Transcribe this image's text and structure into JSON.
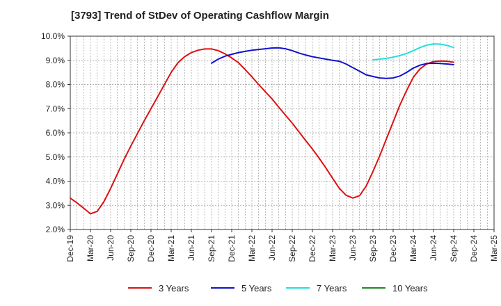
{
  "chart_data": {
    "type": "line",
    "title": "[3793]  Trend of StDev of Operating Cashflow Margin",
    "xlabel": "",
    "ylabel": "",
    "x_ticks": [
      "Dec-19",
      "Mar-20",
      "Jun-20",
      "Sep-20",
      "Dec-20",
      "Mar-21",
      "Jun-21",
      "Sep-21",
      "Dec-21",
      "Mar-22",
      "Jun-22",
      "Sep-22",
      "Dec-22",
      "Mar-23",
      "Jun-23",
      "Sep-23",
      "Dec-23",
      "Mar-24",
      "Jun-24",
      "Sep-24",
      "Dec-24",
      "Mar-25"
    ],
    "y_ticks": [
      "2.0%",
      "3.0%",
      "4.0%",
      "5.0%",
      "6.0%",
      "7.0%",
      "8.0%",
      "9.0%",
      "10.0%"
    ],
    "ylim": [
      2.0,
      10.0
    ],
    "grid": true,
    "legend_position": "bottom",
    "series": [
      {
        "name": "3 Years",
        "color": "#dd1111",
        "x": [
          "Dec-19",
          "Jan-20",
          "Feb-20",
          "Mar-20",
          "Apr-20",
          "May-20",
          "Jun-20",
          "Jul-20",
          "Aug-20",
          "Sep-20",
          "Oct-20",
          "Nov-20",
          "Dec-20",
          "Jan-21",
          "Feb-21",
          "Mar-21",
          "Apr-21",
          "May-21",
          "Jun-21",
          "Jul-21",
          "Aug-21",
          "Sep-21",
          "Oct-21",
          "Nov-21",
          "Dec-21",
          "Jan-22",
          "Feb-22",
          "Mar-22",
          "Apr-22",
          "May-22",
          "Jun-22",
          "Jul-22",
          "Aug-22",
          "Sep-22",
          "Oct-22",
          "Nov-22",
          "Dec-22",
          "Jan-23",
          "Feb-23",
          "Mar-23",
          "Apr-23",
          "May-23",
          "Jun-23",
          "Jul-23",
          "Aug-23",
          "Sep-23",
          "Oct-23",
          "Nov-23",
          "Dec-23",
          "Jan-24",
          "Feb-24",
          "Mar-24",
          "Apr-24",
          "May-24",
          "Jun-24",
          "Jul-24",
          "Aug-24",
          "Sep-24"
        ],
        "values": [
          3.3,
          3.1,
          2.88,
          2.65,
          2.75,
          3.15,
          3.7,
          4.3,
          4.9,
          5.45,
          5.98,
          6.5,
          7.0,
          7.5,
          8.0,
          8.5,
          8.9,
          9.15,
          9.32,
          9.42,
          9.47,
          9.47,
          9.4,
          9.27,
          9.1,
          8.9,
          8.62,
          8.32,
          8.0,
          7.7,
          7.4,
          7.06,
          6.73,
          6.4,
          6.04,
          5.68,
          5.33,
          4.95,
          4.55,
          4.12,
          3.7,
          3.42,
          3.3,
          3.4,
          3.8,
          4.4,
          5.05,
          5.75,
          6.45,
          7.15,
          7.75,
          8.3,
          8.65,
          8.85,
          8.95,
          8.97,
          8.96,
          8.92
        ]
      },
      {
        "name": "5 Years",
        "color": "#1111cc",
        "x": [
          "Sep-21",
          "Oct-21",
          "Nov-21",
          "Dec-21",
          "Jan-22",
          "Feb-22",
          "Mar-22",
          "Apr-22",
          "May-22",
          "Jun-22",
          "Jul-22",
          "Aug-22",
          "Sep-22",
          "Oct-22",
          "Nov-22",
          "Dec-22",
          "Jan-23",
          "Feb-23",
          "Mar-23",
          "Apr-23",
          "May-23",
          "Jun-23",
          "Jul-23",
          "Aug-23",
          "Sep-23",
          "Oct-23",
          "Nov-23",
          "Dec-23",
          "Jan-24",
          "Feb-24",
          "Mar-24",
          "Apr-24",
          "May-24",
          "Jun-24",
          "Jul-24",
          "Aug-24",
          "Sep-24"
        ],
        "values": [
          8.88,
          9.05,
          9.17,
          9.25,
          9.32,
          9.37,
          9.42,
          9.45,
          9.48,
          9.51,
          9.52,
          9.48,
          9.4,
          9.3,
          9.22,
          9.15,
          9.1,
          9.05,
          9.0,
          8.96,
          8.85,
          8.7,
          8.55,
          8.4,
          8.33,
          8.27,
          8.25,
          8.27,
          8.35,
          8.5,
          8.68,
          8.8,
          8.87,
          8.88,
          8.87,
          8.85,
          8.82
        ]
      },
      {
        "name": "7 Years",
        "color": "#22dddd",
        "x": [
          "Sep-23",
          "Oct-23",
          "Nov-23",
          "Dec-23",
          "Jan-24",
          "Feb-24",
          "Mar-24",
          "Apr-24",
          "May-24",
          "Jun-24",
          "Jul-24",
          "Aug-24",
          "Sep-24"
        ],
        "values": [
          9.02,
          9.05,
          9.08,
          9.13,
          9.2,
          9.28,
          9.4,
          9.53,
          9.63,
          9.68,
          9.67,
          9.62,
          9.53
        ]
      },
      {
        "name": "10 Years",
        "color": "#228822",
        "x": [],
        "values": []
      }
    ]
  }
}
